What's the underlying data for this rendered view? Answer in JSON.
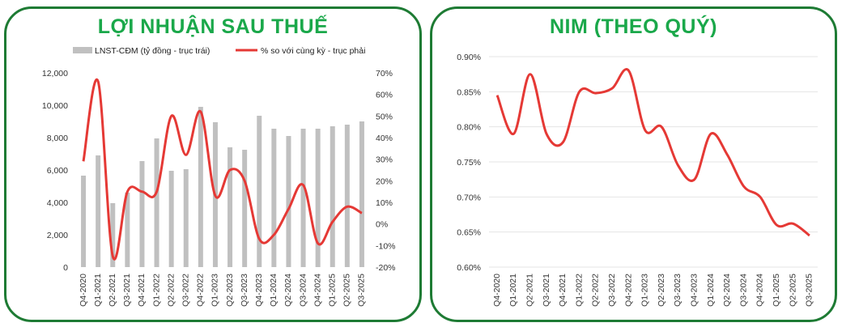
{
  "colors": {
    "frame": "#1e7b34",
    "title": "#1aa84a",
    "bar": "#c0c0c0",
    "line": "#e53935",
    "grid": "#e5e5e5"
  },
  "chart_data": [
    {
      "type": "bar",
      "title": "LỢI NHUẬN SAU THUẾ",
      "categories": [
        "Q4-2020",
        "Q1-2021",
        "Q2-2021",
        "Q3-2021",
        "Q4-2021",
        "Q1-2022",
        "Q2-2022",
        "Q3-2022",
        "Q4-2022",
        "Q1-2023",
        "Q2-2023",
        "Q3-2023",
        "Q4-2023",
        "Q1-2024",
        "Q2-2024",
        "Q3-2024",
        "Q4-2024",
        "Q1-2025",
        "Q2-2025",
        "Q3-2025"
      ],
      "series": [
        {
          "name": "LNST-CĐM (tỷ đồng - trục trái)",
          "type": "bar",
          "axis": "left",
          "values": [
            5650,
            6900,
            3950,
            4600,
            6550,
            7950,
            5950,
            6050,
            9900,
            8950,
            7400,
            7250,
            9350,
            8550,
            8100,
            8550,
            8550,
            8700,
            8800,
            9000
          ]
        },
        {
          "name": "% so với cùng kỳ - trục phải",
          "type": "line",
          "axis": "right",
          "values": [
            29,
            66,
            -15,
            15,
            15,
            15,
            50,
            32,
            52,
            13,
            25,
            20,
            -7,
            -5,
            7,
            18,
            -9,
            1,
            8,
            5
          ]
        }
      ],
      "left_axis": {
        "ylim": [
          0,
          12000
        ],
        "ticks": [
          "0",
          "2,000",
          "4,000",
          "6,000",
          "8,000",
          "10,000",
          "12,000"
        ]
      },
      "right_axis": {
        "ylim": [
          -20,
          70
        ],
        "ticks": [
          "-20%",
          "-10%",
          "0%",
          "10%",
          "20%",
          "30%",
          "40%",
          "50%",
          "60%",
          "70%"
        ]
      },
      "legend_placement": "top"
    },
    {
      "type": "line",
      "title": "NIM (THEO QUÝ)",
      "categories": [
        "Q4-2020",
        "Q1-2021",
        "Q2-2021",
        "Q3-2021",
        "Q4-2021",
        "Q1-2022",
        "Q2-2022",
        "Q3-2022",
        "Q4-2022",
        "Q1-2023",
        "Q2-2023",
        "Q3-2023",
        "Q4-2023",
        "Q1-2024",
        "Q2-2024",
        "Q3-2024",
        "Q4-2024",
        "Q1-2025",
        "Q2-2025",
        "Q3-2025"
      ],
      "values": [
        0.845,
        0.79,
        0.875,
        0.79,
        0.778,
        0.85,
        0.848,
        0.855,
        0.88,
        0.795,
        0.8,
        0.745,
        0.725,
        0.79,
        0.76,
        0.715,
        0.7,
        0.66,
        0.662,
        0.645
      ],
      "ylim": [
        0.6,
        0.9
      ],
      "ticks": [
        "0.60%",
        "0.65%",
        "0.70%",
        "0.75%",
        "0.80%",
        "0.85%",
        "0.90%"
      ],
      "grid": true
    }
  ]
}
